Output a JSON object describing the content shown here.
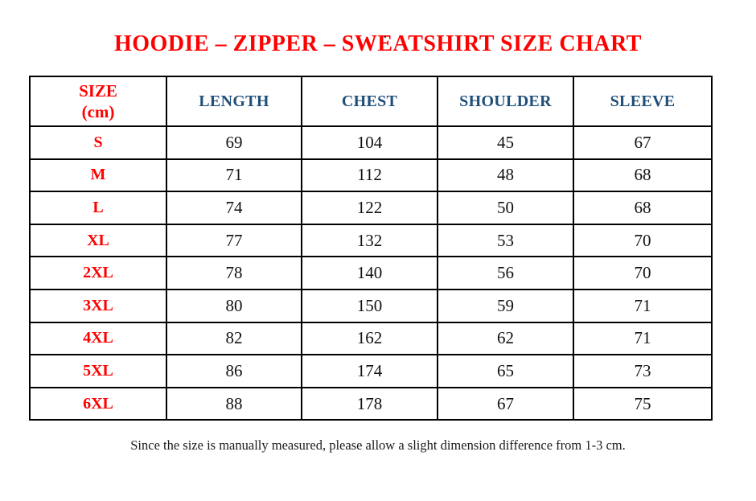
{
  "page": {
    "stray_dot": ".",
    "title": "HOODIE – ZIPPER – SWEATSHIRT SIZE CHART",
    "footer_note": "Since the size is manually measured, please allow a slight dimension difference from 1-3 cm."
  },
  "colors": {
    "title_red": "#FF0000",
    "size_label_red": "#FF0000",
    "header_blue": "#1F4E79",
    "value_black": "#111111",
    "border_black": "#000000",
    "background": "#FFFFFF"
  },
  "size_header": {
    "line1": "SIZE",
    "line2": "(cm)"
  },
  "chart_data": {
    "type": "table",
    "title": "HOODIE – ZIPPER – SWEATSHIRT SIZE CHART",
    "columns": [
      "SIZE (cm)",
      "LENGTH",
      "CHEST",
      "SHOULDER",
      "SLEEVE"
    ],
    "rows": [
      [
        "S",
        "69",
        "104",
        "45",
        "67"
      ],
      [
        "M",
        "71",
        "112",
        "48",
        "68"
      ],
      [
        "L",
        "74",
        "122",
        "50",
        "68"
      ],
      [
        "XL",
        "77",
        "132",
        "53",
        "70"
      ],
      [
        "2XL",
        "78",
        "140",
        "56",
        "70"
      ],
      [
        "3XL",
        "80",
        "150",
        "59",
        "71"
      ],
      [
        "4XL",
        "82",
        "162",
        "62",
        "71"
      ],
      [
        "5XL",
        "86",
        "174",
        "65",
        "73"
      ],
      [
        "6XL",
        "88",
        "178",
        "67",
        "75"
      ]
    ],
    "note": "Since the size is manually measured, please allow a slight dimension difference from 1-3 cm."
  }
}
